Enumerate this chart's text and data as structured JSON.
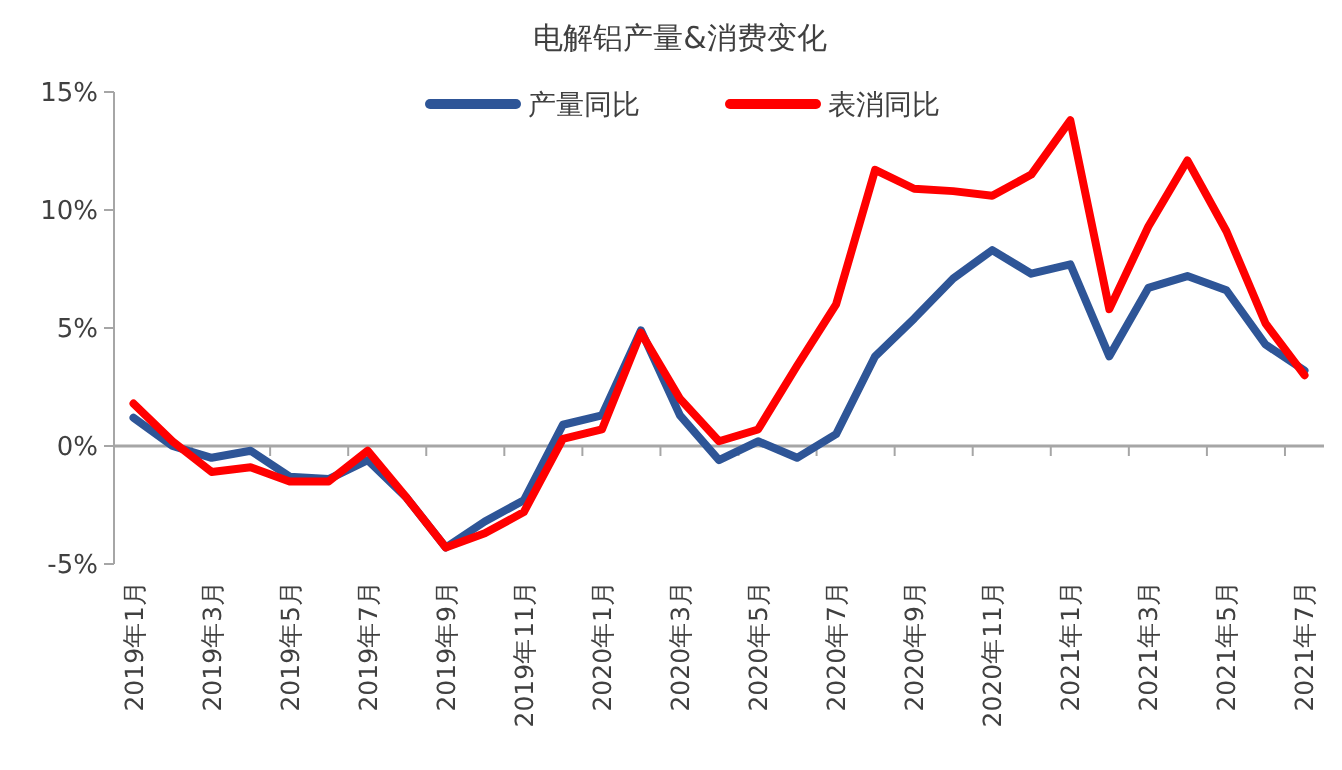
{
  "chart_data": {
    "type": "line",
    "title": "电解铝产量&消费变化",
    "categories": [
      "2019年1月",
      null,
      "2019年3月",
      null,
      "2019年5月",
      null,
      "2019年7月",
      null,
      "2019年9月",
      null,
      "2019年11月",
      null,
      "2020年1月",
      null,
      "2020年3月",
      null,
      "2020年5月",
      null,
      "2020年7月",
      null,
      "2020年9月",
      null,
      "2020年11月",
      null,
      "2021年1月",
      null,
      "2021年3月",
      null,
      "2021年5月",
      null,
      "2021年7月"
    ],
    "series": [
      {
        "name": "产量同比",
        "color": "#2e5597",
        "values": [
          1.2,
          0,
          -0.5,
          -0.2,
          -1.3,
          -1.4,
          -0.6,
          -2.2,
          -4.3,
          -3.2,
          -2.3,
          0.9,
          1.3,
          4.9,
          1.3,
          -0.6,
          0.2,
          -0.5,
          0.5,
          3.8,
          5.4,
          7.1,
          8.3,
          7.3,
          7.7,
          3.8,
          6.7,
          7.2,
          6.6,
          4.3,
          3.2
        ]
      },
      {
        "name": "表消同比",
        "color": "#ff0000",
        "values": [
          1.8,
          0.2,
          -1.1,
          -0.9,
          -1.5,
          -1.5,
          -0.2,
          -2.2,
          -4.3,
          -3.7,
          -2.8,
          0.3,
          0.7,
          4.8,
          2.0,
          0.2,
          0.7,
          3.4,
          6.0,
          11.7,
          10.9,
          10.8,
          10.6,
          11.5,
          13.8,
          5.8,
          9.3,
          12.1,
          9.1,
          5.2,
          3.0
        ]
      }
    ],
    "ylim": [
      -5,
      15
    ],
    "yticks": [
      {
        "value": -5,
        "label": "-5%"
      },
      {
        "value": 0,
        "label": "0%"
      },
      {
        "value": 5,
        "label": "5%"
      },
      {
        "value": 10,
        "label": "10%"
      },
      {
        "value": 15,
        "label": "15%"
      }
    ],
    "legend": "top",
    "marker": "none",
    "line_style": "solid"
  }
}
